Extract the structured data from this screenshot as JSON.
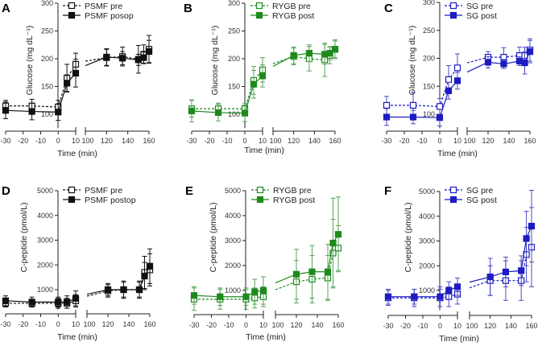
{
  "chart_data": [
    {
      "panel": "A",
      "type": "line",
      "ylabel": "Glucose (mg dL⁻¹)",
      "xlabel": "Time (min)",
      "ylim": [
        75,
        300
      ],
      "yticks": [
        100,
        150,
        200,
        250,
        300
      ],
      "x": [
        -30,
        -15,
        0,
        5,
        10,
        120,
        135,
        150,
        155,
        160
      ],
      "xticks_left": [
        -30,
        -20,
        -10,
        0,
        10
      ],
      "xticks_right": [
        100,
        120,
        140,
        160
      ],
      "color": "#111111",
      "errcolor": "#111111",
      "series": [
        {
          "name": "PSMF pre",
          "style": "dashed-open",
          "values": [
            115,
            115,
            113,
            165,
            190,
            202,
            204,
            199,
            208,
            217
          ],
          "error": [
            10,
            12,
            12,
            25,
            20,
            15,
            17,
            25,
            17,
            25
          ]
        },
        {
          "name": "PSMF posop",
          "style": "solid-filled",
          "values": [
            107,
            105,
            104,
            156,
            174,
            203,
            201,
            198,
            202,
            213
          ],
          "error": [
            15,
            15,
            15,
            15,
            25,
            15,
            12,
            10,
            10,
            20
          ]
        }
      ]
    },
    {
      "panel": "B",
      "type": "line",
      "ylabel": "Glucose (mg dL⁻¹)",
      "xlabel": "Time (min)",
      "ylim": [
        75,
        300
      ],
      "yticks": [
        100,
        150,
        200,
        250,
        300
      ],
      "x": [
        -30,
        -15,
        0,
        5,
        10,
        120,
        135,
        150,
        155,
        160
      ],
      "xticks_left": [
        -30,
        -20,
        -10,
        0,
        10
      ],
      "xticks_right": [
        100,
        120,
        140,
        160
      ],
      "color": "#1e8a1e",
      "errcolor": "#5aa55a",
      "series": [
        {
          "name": "RYGB pre",
          "style": "dashed-open",
          "values": [
            110,
            110,
            110,
            161,
            180,
            204,
            200,
            198,
            206,
            217
          ],
          "error": [
            15,
            10,
            10,
            25,
            22,
            15,
            22,
            30,
            15,
            17
          ]
        },
        {
          "name": "RYGB post",
          "style": "solid-filled",
          "values": [
            106,
            103,
            102,
            154,
            169,
            206,
            210,
            208,
            210,
            217
          ],
          "error": [
            20,
            15,
            15,
            25,
            20,
            15,
            15,
            18,
            12,
            15
          ]
        }
      ]
    },
    {
      "panel": "C",
      "type": "line",
      "ylabel": "Glucose (mg dL⁻¹)",
      "xlabel": "Time (min)",
      "ylim": [
        75,
        300
      ],
      "yticks": [
        100,
        150,
        200,
        250,
        300
      ],
      "x": [
        -30,
        -15,
        0,
        5,
        10,
        120,
        135,
        150,
        155,
        160
      ],
      "xticks_left": [
        -30,
        -20,
        -10,
        0,
        10
      ],
      "xticks_right": [
        100,
        120,
        140,
        160
      ],
      "color": "#1c1cc0",
      "errcolor": "#4a4ac8",
      "series": [
        {
          "name": "SG pre",
          "style": "dashed-open",
          "values": [
            116,
            116,
            114,
            162,
            183,
            202,
            202,
            205,
            205,
            215
          ],
          "error": [
            16,
            23,
            14,
            25,
            25,
            10,
            17,
            15,
            15,
            20
          ]
        },
        {
          "name": "SG post",
          "style": "solid-filled",
          "values": [
            95,
            95,
            94,
            142,
            160,
            193,
            190,
            195,
            192,
            212
          ],
          "error": [
            15,
            12,
            15,
            15,
            15,
            10,
            8,
            8,
            20,
            20
          ]
        }
      ]
    },
    {
      "panel": "D",
      "type": "line",
      "ylabel": "C-peptide (pmol/L)",
      "xlabel": "Time (min)",
      "ylim": [
        200,
        5000
      ],
      "yticks": [
        1000,
        2000,
        3000,
        4000,
        5000
      ],
      "x": [
        -30,
        -15,
        0,
        5,
        10,
        120,
        135,
        150,
        155,
        160
      ],
      "xticks_left": [
        -30,
        -20,
        -10,
        0,
        10
      ],
      "xticks_right": [
        100,
        120,
        140,
        160
      ],
      "color": "#111111",
      "errcolor": "#111111",
      "series": [
        {
          "name": "PSMF pre",
          "style": "dashed-open",
          "values": [
            450,
            450,
            450,
            450,
            550,
            950,
            1000,
            1000,
            1700,
            1800
          ],
          "error": [
            150,
            150,
            200,
            200,
            250,
            250,
            350,
            350,
            650,
            650
          ]
        },
        {
          "name": "PSMF postop",
          "style": "solid-filled",
          "values": [
            550,
            500,
            500,
            500,
            650,
            1000,
            1000,
            1000,
            1550,
            1950
          ],
          "error": [
            200,
            200,
            200,
            250,
            300,
            250,
            300,
            300,
            550,
            700
          ]
        }
      ]
    },
    {
      "panel": "E",
      "type": "line",
      "ylabel": "C-peptide (pmol/L)",
      "xlabel": "Time (min)",
      "ylim": [
        200,
        5000
      ],
      "yticks": [
        1000,
        2000,
        3000,
        4000,
        5000
      ],
      "x": [
        -30,
        -15,
        0,
        5,
        10,
        120,
        135,
        150,
        155,
        160
      ],
      "xticks_left": [
        -30,
        -20,
        -10,
        0,
        10
      ],
      "xticks_right": [
        100,
        120,
        140,
        160
      ],
      "color": "#1e8a1e",
      "errcolor": "#5aa55a",
      "series": [
        {
          "name": "RYGB pre",
          "style": "dashed-open",
          "values": [
            650,
            650,
            650,
            700,
            750,
            1350,
            1450,
            1500,
            2500,
            2700
          ],
          "error": [
            450,
            400,
            400,
            400,
            400,
            850,
            950,
            900,
            1350,
            900
          ]
        },
        {
          "name": "RYGB post",
          "style": "solid-filled",
          "values": [
            800,
            750,
            750,
            950,
            1000,
            1650,
            1750,
            1750,
            2900,
            3250
          ],
          "error": [
            350,
            350,
            350,
            500,
            550,
            1000,
            1050,
            1100,
            1800,
            1500
          ]
        }
      ]
    },
    {
      "panel": "F",
      "type": "line",
      "ylabel": "C-peptide (pmol/L)",
      "xlabel": "Time (min)",
      "ylim": [
        200,
        5000
      ],
      "yticks": [
        1000,
        2000,
        3000,
        4000,
        5000
      ],
      "x": [
        -30,
        -15,
        0,
        5,
        10,
        120,
        135,
        150,
        155,
        160
      ],
      "xticks_left": [
        -30,
        -20,
        -10,
        0,
        10
      ],
      "xticks_right": [
        100,
        120,
        140,
        160
      ],
      "color": "#1c1cc0",
      "errcolor": "#4a4ac8",
      "series": [
        {
          "name": "SG pre",
          "style": "dashed-open",
          "values": [
            700,
            700,
            700,
            750,
            850,
            1400,
            1400,
            1400,
            2450,
            2750
          ],
          "error": [
            300,
            350,
            350,
            400,
            400,
            600,
            800,
            800,
            1100,
            1600
          ]
        },
        {
          "name": "SG post",
          "style": "solid-filled",
          "values": [
            750,
            750,
            750,
            1000,
            1150,
            1550,
            1750,
            1800,
            3100,
            3600
          ],
          "error": [
            300,
            300,
            400,
            350,
            350,
            750,
            600,
            600,
            1100,
            1450
          ]
        }
      ]
    }
  ]
}
